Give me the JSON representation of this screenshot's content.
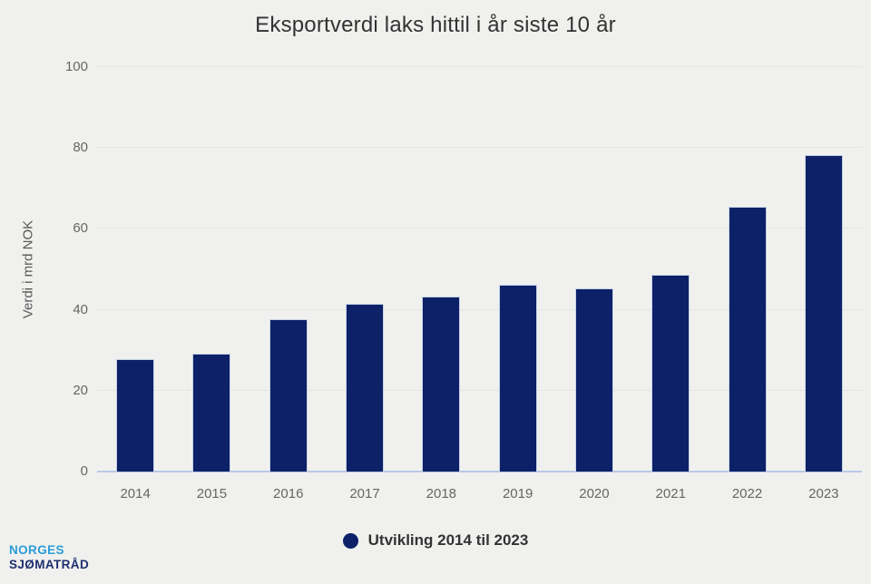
{
  "chart_data": {
    "type": "bar",
    "title": "Eksportverdi laks hittil i år siste 10 år",
    "categories": [
      "2014",
      "2015",
      "2016",
      "2017",
      "2018",
      "2019",
      "2020",
      "2021",
      "2022",
      "2023"
    ],
    "values": [
      27.7,
      29.2,
      37.6,
      41.4,
      43.2,
      46.1,
      45.4,
      48.7,
      65.5,
      78.3
    ],
    "series_name": "Utvikling 2014 til 2023",
    "xlabel": "",
    "ylabel": "Verdi i mrd NOK",
    "ylim": [
      0,
      100
    ],
    "yticks": [
      0,
      20,
      40,
      60,
      80,
      100
    ],
    "grid": true,
    "legend_position": "bottom",
    "bar_color": "#0c2167",
    "background_color": "#f0f1ee"
  },
  "legend": {
    "label": "Utvikling 2014 til 2023"
  },
  "logo": {
    "line1": "NORGES",
    "line2": "SJØMATRÅD"
  },
  "colors": {
    "bar": "#0c2167",
    "background": "#f0f1ee",
    "baseline": "#b9c8e6",
    "gridline": "#e3e5e1",
    "title_text": "#333333",
    "axis_text": "#666666",
    "logo_blue": "#2b9cd8",
    "logo_navy": "#1e2e6e"
  }
}
